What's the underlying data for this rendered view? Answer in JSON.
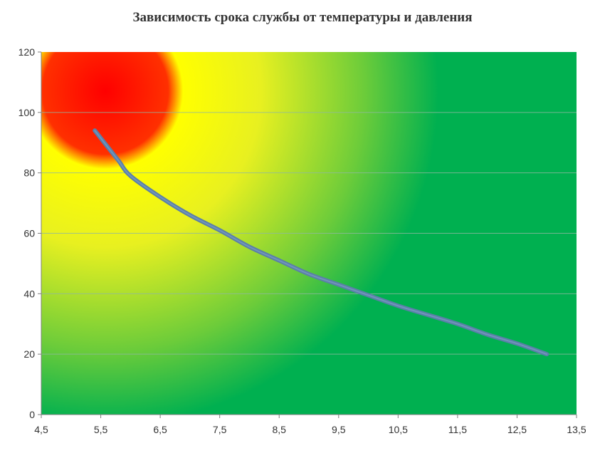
{
  "chart_data": {
    "type": "line",
    "title": "Зависимость срока службы от температуры и давления",
    "xlabel": "",
    "ylabel": "",
    "xlim": [
      4.5,
      13.5
    ],
    "ylim": [
      0,
      120
    ],
    "x_ticks": [
      "4,5",
      "5,5",
      "6,5",
      "7,5",
      "8,5",
      "9,5",
      "10,5",
      "11,5",
      "12,5",
      "13,5"
    ],
    "y_ticks": [
      "0",
      "20",
      "40",
      "60",
      "80",
      "100",
      "120"
    ],
    "grid": true,
    "legend": "none",
    "series": [
      {
        "color": "#5b7fa8",
        "x": [
          5.4,
          5.6,
          5.8,
          6.0,
          6.5,
          7.0,
          7.5,
          8.0,
          8.5,
          9.0,
          9.5,
          10.0,
          10.5,
          11.0,
          11.5,
          12.0,
          12.5,
          13.0
        ],
        "y": [
          94,
          89,
          84,
          79,
          72,
          66,
          61,
          55.5,
          51,
          46.5,
          43,
          39.5,
          36,
          33,
          30,
          26.5,
          23.5,
          20
        ]
      }
    ],
    "background": {
      "hot_zone_color": "#ff0000",
      "warm_zone_color": "#ffff00",
      "safe_zone_color": "#00b050"
    }
  }
}
